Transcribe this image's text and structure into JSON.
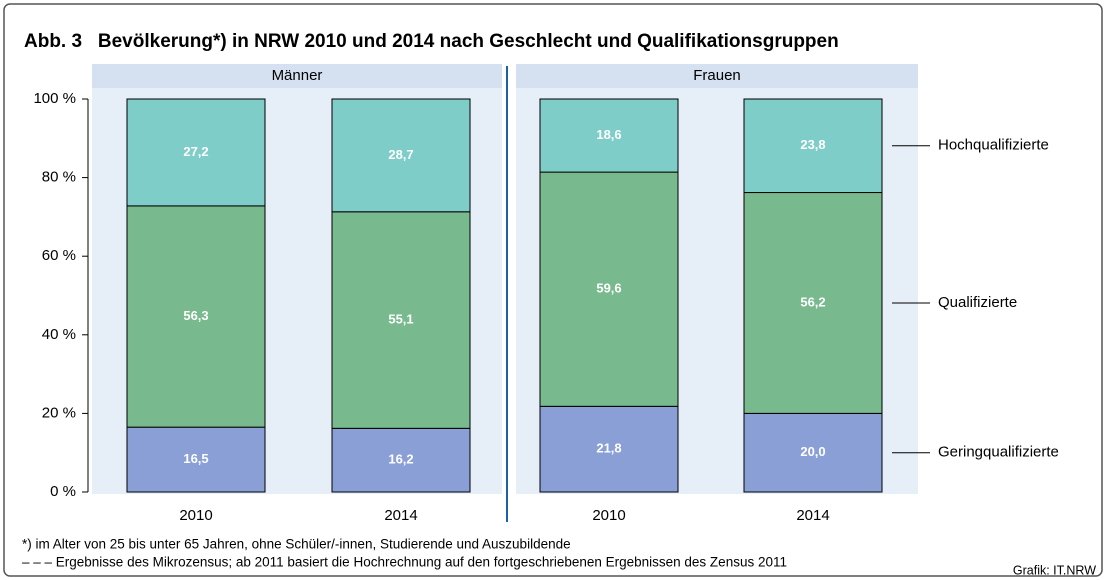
{
  "chart_data": {
    "type": "stacked_bar",
    "title": "Abb. 3   Bevölkerung*) in NRW 2010 und 2014 nach Geschlecht und Qualifikationsgruppen",
    "groups": [
      "Männer",
      "Frauen"
    ],
    "categories": [
      "2010",
      "2014",
      "2010",
      "2014"
    ],
    "series": [
      {
        "name": "Geringqualifizierte",
        "color": "#8a9fd6",
        "values": [
          16.5,
          16.2,
          21.8,
          20.0
        ],
        "value_labels": [
          "16,5",
          "16,2",
          "21,8",
          "20,0"
        ]
      },
      {
        "name": "Qualifizierte",
        "color": "#78b98d",
        "values": [
          56.3,
          55.1,
          59.6,
          56.2
        ],
        "value_labels": [
          "56,3",
          "55,1",
          "59,6",
          "56,2"
        ]
      },
      {
        "name": "Hochqualifizierte",
        "color": "#7fcdc9",
        "values": [
          27.2,
          28.7,
          18.6,
          23.8
        ],
        "value_labels": [
          "27,2",
          "28,7",
          "18,6",
          "23,8"
        ]
      }
    ],
    "ylim": [
      0,
      100
    ],
    "yticks": [
      {
        "value": 0,
        "label": "0 %"
      },
      {
        "value": 20,
        "label": "20 %"
      },
      {
        "value": 40,
        "label": "40 %"
      },
      {
        "value": 60,
        "label": "60 %"
      },
      {
        "value": 80,
        "label": "80 %"
      },
      {
        "value": 100,
        "label": "100 %"
      }
    ],
    "footnotes": [
      "*) im Alter von 25 bis unter 65 Jahren, ohne Schüler/-innen, Studierende und Auszubildende",
      "– – – Ergebnisse des Mikrozensus; ab 2011 basiert die Hochrechnung auf den fortgeschriebenen Ergebnissen des Zensus 2011"
    ],
    "source": "Grafik: IT.NRW"
  }
}
